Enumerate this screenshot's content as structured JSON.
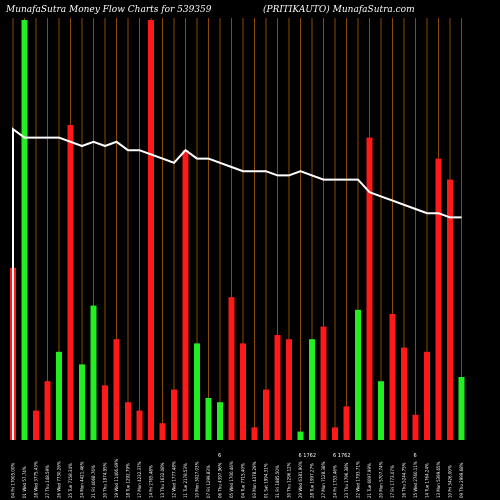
{
  "page": {
    "title_left": "MunafaSutra  Money Flow  Charts for 539359",
    "title_right": "(PRITIKAUTO) MunafaSutra.com"
  },
  "colors": {
    "background": "#000000",
    "gridline": "#8a4a00",
    "up": "#22ee22",
    "down": "#ff1a1a",
    "price_line": "#ffffff"
  },
  "chart_data": {
    "type": "bar",
    "title": "MunafaSutra  Money Flow  Charts for 539359",
    "subtitle": "(PRITIKAUTO) MunafaSutra.com",
    "legend": "none",
    "grid": "vertical",
    "categories": [
      "04 Fri Apr 2025 EOD",
      "01 Mar 2025",
      "28 Fri Feb 2025",
      "27 Thu Feb 2025",
      "26 Wed Feb 2025",
      "25 Tue Feb 2025",
      "24 Mon Feb 2025",
      "21 Fri Feb 2025",
      "20 Thu Feb 2025",
      "19 Wed Feb 2025",
      "18 Tue Feb 2025",
      "17 Mon Feb 2025",
      "14 Fri Feb 2025",
      "13 Thu Feb 2025",
      "12 Wed Feb 2025",
      "11 Tue Feb 2025",
      "10 Mon Feb 2025",
      "07 Fri Feb 2025",
      "06 Thu Feb 2025",
      "05 Wed Feb 2025",
      "04 Tue Feb 2025",
      "03 Mon Feb 2025",
      "01 Sat Feb 2025",
      "31 Fri Jan 2025",
      "30 Thu Jan 2025",
      "29 Wed Jan 2025",
      "28 Tue Jan 2025",
      "27 Mon Jan 2025",
      "24 Fri Jan 2025",
      "23 Thu Jan 2025",
      "22 Wed Jan 2025",
      "21 Tue Jan 2025",
      "20 Mon Jan 2025",
      "17 Fri Jan 2025",
      "16 Thu Jan 2025",
      "15 Wed Jan 2025",
      "14 Tue Jan 2025",
      "13 Mon Jan 2025",
      "10 Fri Jan 2025",
      "09 Thu Jan 2025"
    ],
    "tick_labels": [
      "04 Fri 17005.00%",
      "01 Wed 57.74%",
      "28 Wed 3775.43%",
      "27 Thu 148.59%",
      "26 Wed 7730.26%",
      "25 Tue 7158.34%",
      "24 Mon 4421.46%",
      "21 Fri 4068.76%",
      "20 Thu 1974.95%",
      "19 Wed 11406.69%",
      "18 Tue 1292.79%",
      "17 Mon 4232.37%",
      "14 Fri 2765.48%",
      "13 Thu 1632.08%",
      "12 Wed 1777.48%",
      "11 Tue 2178.53%",
      "10 Mon 3027.03%",
      "07 Fri 1299.83%",
      "06 Thu 4397.96%",
      "05 Wed 1700.46%",
      "04 Tue 7715.40%",
      "03 Mon 4378.29%",
      "01 Sat 1994.31%",
      "31 Fri 1885.50%",
      "30 Thu 1296.12%",
      "29 Wed 6181.90%",
      "28 Tue 1997.27%",
      "27 Mon 7128.38%",
      "24 Fri 1753.46%",
      "23 Thu 1796.38%",
      "22 Wed 1793.71%",
      "21 Tue 6097.99%",
      "20 Mon 5707.74%",
      "17 Fri 1773.07%",
      "16 Thu 5244.75%",
      "15 Wed 2760.11%",
      "14 Tue 1764.24%",
      "13 Mon 5399.65%",
      "10 Fri 3426.00%",
      "09 Thu 2999.68%"
    ],
    "small_markers": [
      {
        "index": 18,
        "text": "6"
      },
      {
        "index": 25,
        "text": "6  1762"
      },
      {
        "index": 28,
        "text": "6  1762"
      },
      {
        "index": 35,
        "text": "6"
      }
    ],
    "ylim": [
      0,
      100
    ],
    "series": [
      {
        "values": [
          41,
          100,
          7,
          14,
          21,
          75,
          18,
          32,
          13,
          24,
          9,
          7,
          100,
          4,
          12,
          69,
          23,
          10,
          9,
          34,
          23,
          3,
          12,
          25,
          24,
          2,
          24,
          27,
          3,
          8,
          31,
          72,
          14,
          30,
          22,
          6,
          21,
          67,
          62,
          15
        ],
        "colors": [
          "down",
          "up",
          "down",
          "down",
          "up",
          "down",
          "up",
          "up",
          "down",
          "down",
          "down",
          "down",
          "down",
          "down",
          "down",
          "down",
          "up",
          "up",
          "up",
          "down",
          "down",
          "down",
          "down",
          "down",
          "down",
          "up",
          "up",
          "down",
          "down",
          "down",
          "up",
          "down",
          "up",
          "down",
          "down",
          "down",
          "down",
          "down",
          "down",
          "up"
        ]
      },
      {
        "values": [
          74,
          72,
          72,
          72,
          72,
          71,
          70,
          71,
          70,
          71,
          69,
          69,
          68,
          67,
          66,
          69,
          67,
          67,
          66,
          65,
          64,
          64,
          64,
          63,
          63,
          64,
          63,
          62,
          62,
          62,
          62,
          59,
          58,
          57,
          56,
          55,
          54,
          54,
          53,
          53
        ]
      }
    ]
  }
}
